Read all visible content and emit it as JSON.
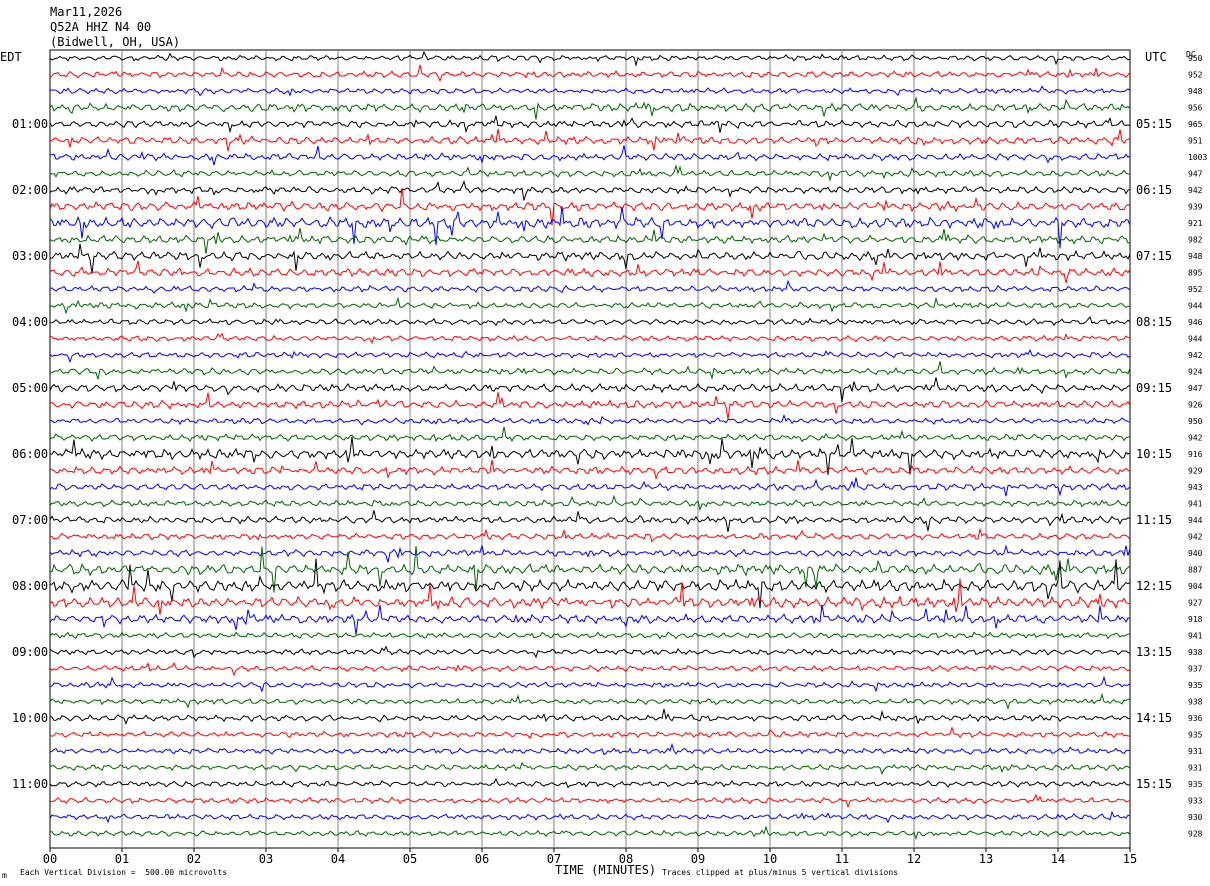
{
  "header": {
    "date": "Mar11,2026",
    "station": "Q52A HHZ N4 00",
    "location": "(Bidwell, OH, USA)"
  },
  "left_tz": "EDT",
  "right_tz": "UTC",
  "dc_label": "DC",
  "footer": {
    "scale_note": "Each Vertical Division =  500.00 microvolts",
    "clip_note": "Traces clipped at plus/minus 5 vertical divisions",
    "corner_mark": "m"
  },
  "colors": {
    "cycle": [
      "#000000",
      "#ff0000",
      "#0000ff",
      "#006400"
    ],
    "grid": "#808080"
  },
  "chart_data": {
    "type": "line",
    "xlabel": "TIME (MINUTES)",
    "x_ticks": [
      "00",
      "01",
      "02",
      "03",
      "04",
      "05",
      "06",
      "07",
      "08",
      "09",
      "10",
      "11",
      "12",
      "13",
      "14",
      "15"
    ],
    "xlim": [
      0,
      15
    ],
    "left_hour_labels": [
      "01:00",
      "02:00",
      "03:00",
      "04:00",
      "05:00",
      "06:00",
      "07:00",
      "08:00",
      "09:00",
      "10:00",
      "11:00"
    ],
    "right_hour_labels": [
      "05:15",
      "06:15",
      "07:15",
      "08:15",
      "09:15",
      "10:15",
      "11:15",
      "12:15",
      "13:15",
      "14:15",
      "15:15"
    ],
    "dc_offsets": [
      950,
      952,
      948,
      956,
      965,
      951,
      1003,
      947,
      942,
      939,
      921,
      982,
      948,
      895,
      952,
      944,
      946,
      944,
      942,
      924,
      947,
      926,
      950,
      942,
      916,
      929,
      943,
      941,
      944,
      942,
      940,
      887,
      904,
      927,
      918,
      941,
      938,
      937,
      935,
      938,
      936,
      935,
      931,
      931,
      935,
      933,
      930,
      928
    ],
    "amplitude_profile": [
      1.0,
      1.1,
      1.0,
      1.5,
      1.3,
      1.4,
      1.3,
      1.2,
      1.3,
      1.6,
      1.9,
      1.4,
      1.6,
      1.5,
      1.1,
      1.1,
      1.1,
      1.0,
      1.0,
      1.2,
      1.4,
      1.4,
      1.0,
      1.2,
      1.8,
      1.4,
      1.2,
      1.1,
      1.3,
      1.1,
      1.2,
      1.9,
      2.2,
      2.0,
      1.6,
      1.1,
      1.0,
      1.0,
      1.0,
      1.0,
      1.1,
      1.0,
      1.0,
      1.0,
      1.0,
      1.0,
      1.0,
      1.0
    ]
  }
}
